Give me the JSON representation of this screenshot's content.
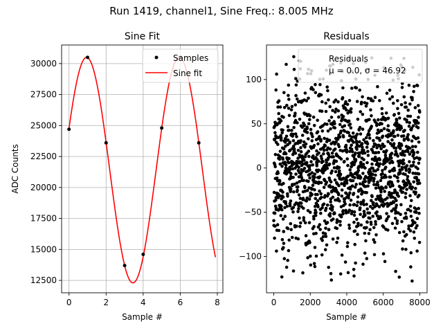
{
  "chart_data": [
    {
      "type": "scatter+line",
      "figure_title": "Run 1419, channel1, Sine Freq.: 8.005 MHz",
      "title": "Sine Fit",
      "xlabel": "Sample #",
      "ylabel": "ADC Counts",
      "xlim": [
        -0.4,
        8.3
      ],
      "ylim": [
        11500,
        31500
      ],
      "xticks": [
        0,
        2,
        4,
        6,
        8
      ],
      "yticks": [
        12500,
        15000,
        17500,
        20000,
        22500,
        25000,
        27500,
        30000
      ],
      "grid": true,
      "legend_position": "top-right",
      "colors": {
        "samples": "#000000",
        "fit": "#ff0000"
      },
      "samples": {
        "name": "Samples",
        "x": [
          0,
          1,
          2,
          3,
          4,
          5,
          6,
          7
        ],
        "y": [
          24700,
          30500,
          23600,
          13700,
          14600,
          24800,
          30500,
          23600
        ]
      },
      "fit": {
        "name": "Sine fit",
        "x_start": 0,
        "x_end": 7.9,
        "offset": 21400,
        "amplitude": 9100,
        "cycles_per_sample": 0.2,
        "phase": 0.38
      }
    },
    {
      "type": "scatter",
      "title": "Residuals",
      "xlabel": "Sample #",
      "xlim": [
        -400,
        8400
      ],
      "ylim": [
        -141,
        139
      ],
      "xticks": [
        0,
        2000,
        4000,
        6000,
        8000
      ],
      "yticks": [
        -100,
        -50,
        0,
        50,
        100
      ],
      "grid": false,
      "legend_position": "top-right",
      "colors": {
        "points": "#000000"
      },
      "legend": {
        "line1": "Residuals",
        "line2": "μ = 0.0, σ = 46.92"
      },
      "residuals": {
        "name": "Residuals",
        "x_range": [
          0,
          8000
        ],
        "count": 8000,
        "mean": 0.0,
        "std": 46.92,
        "min": -131,
        "max": 126
      }
    }
  ]
}
